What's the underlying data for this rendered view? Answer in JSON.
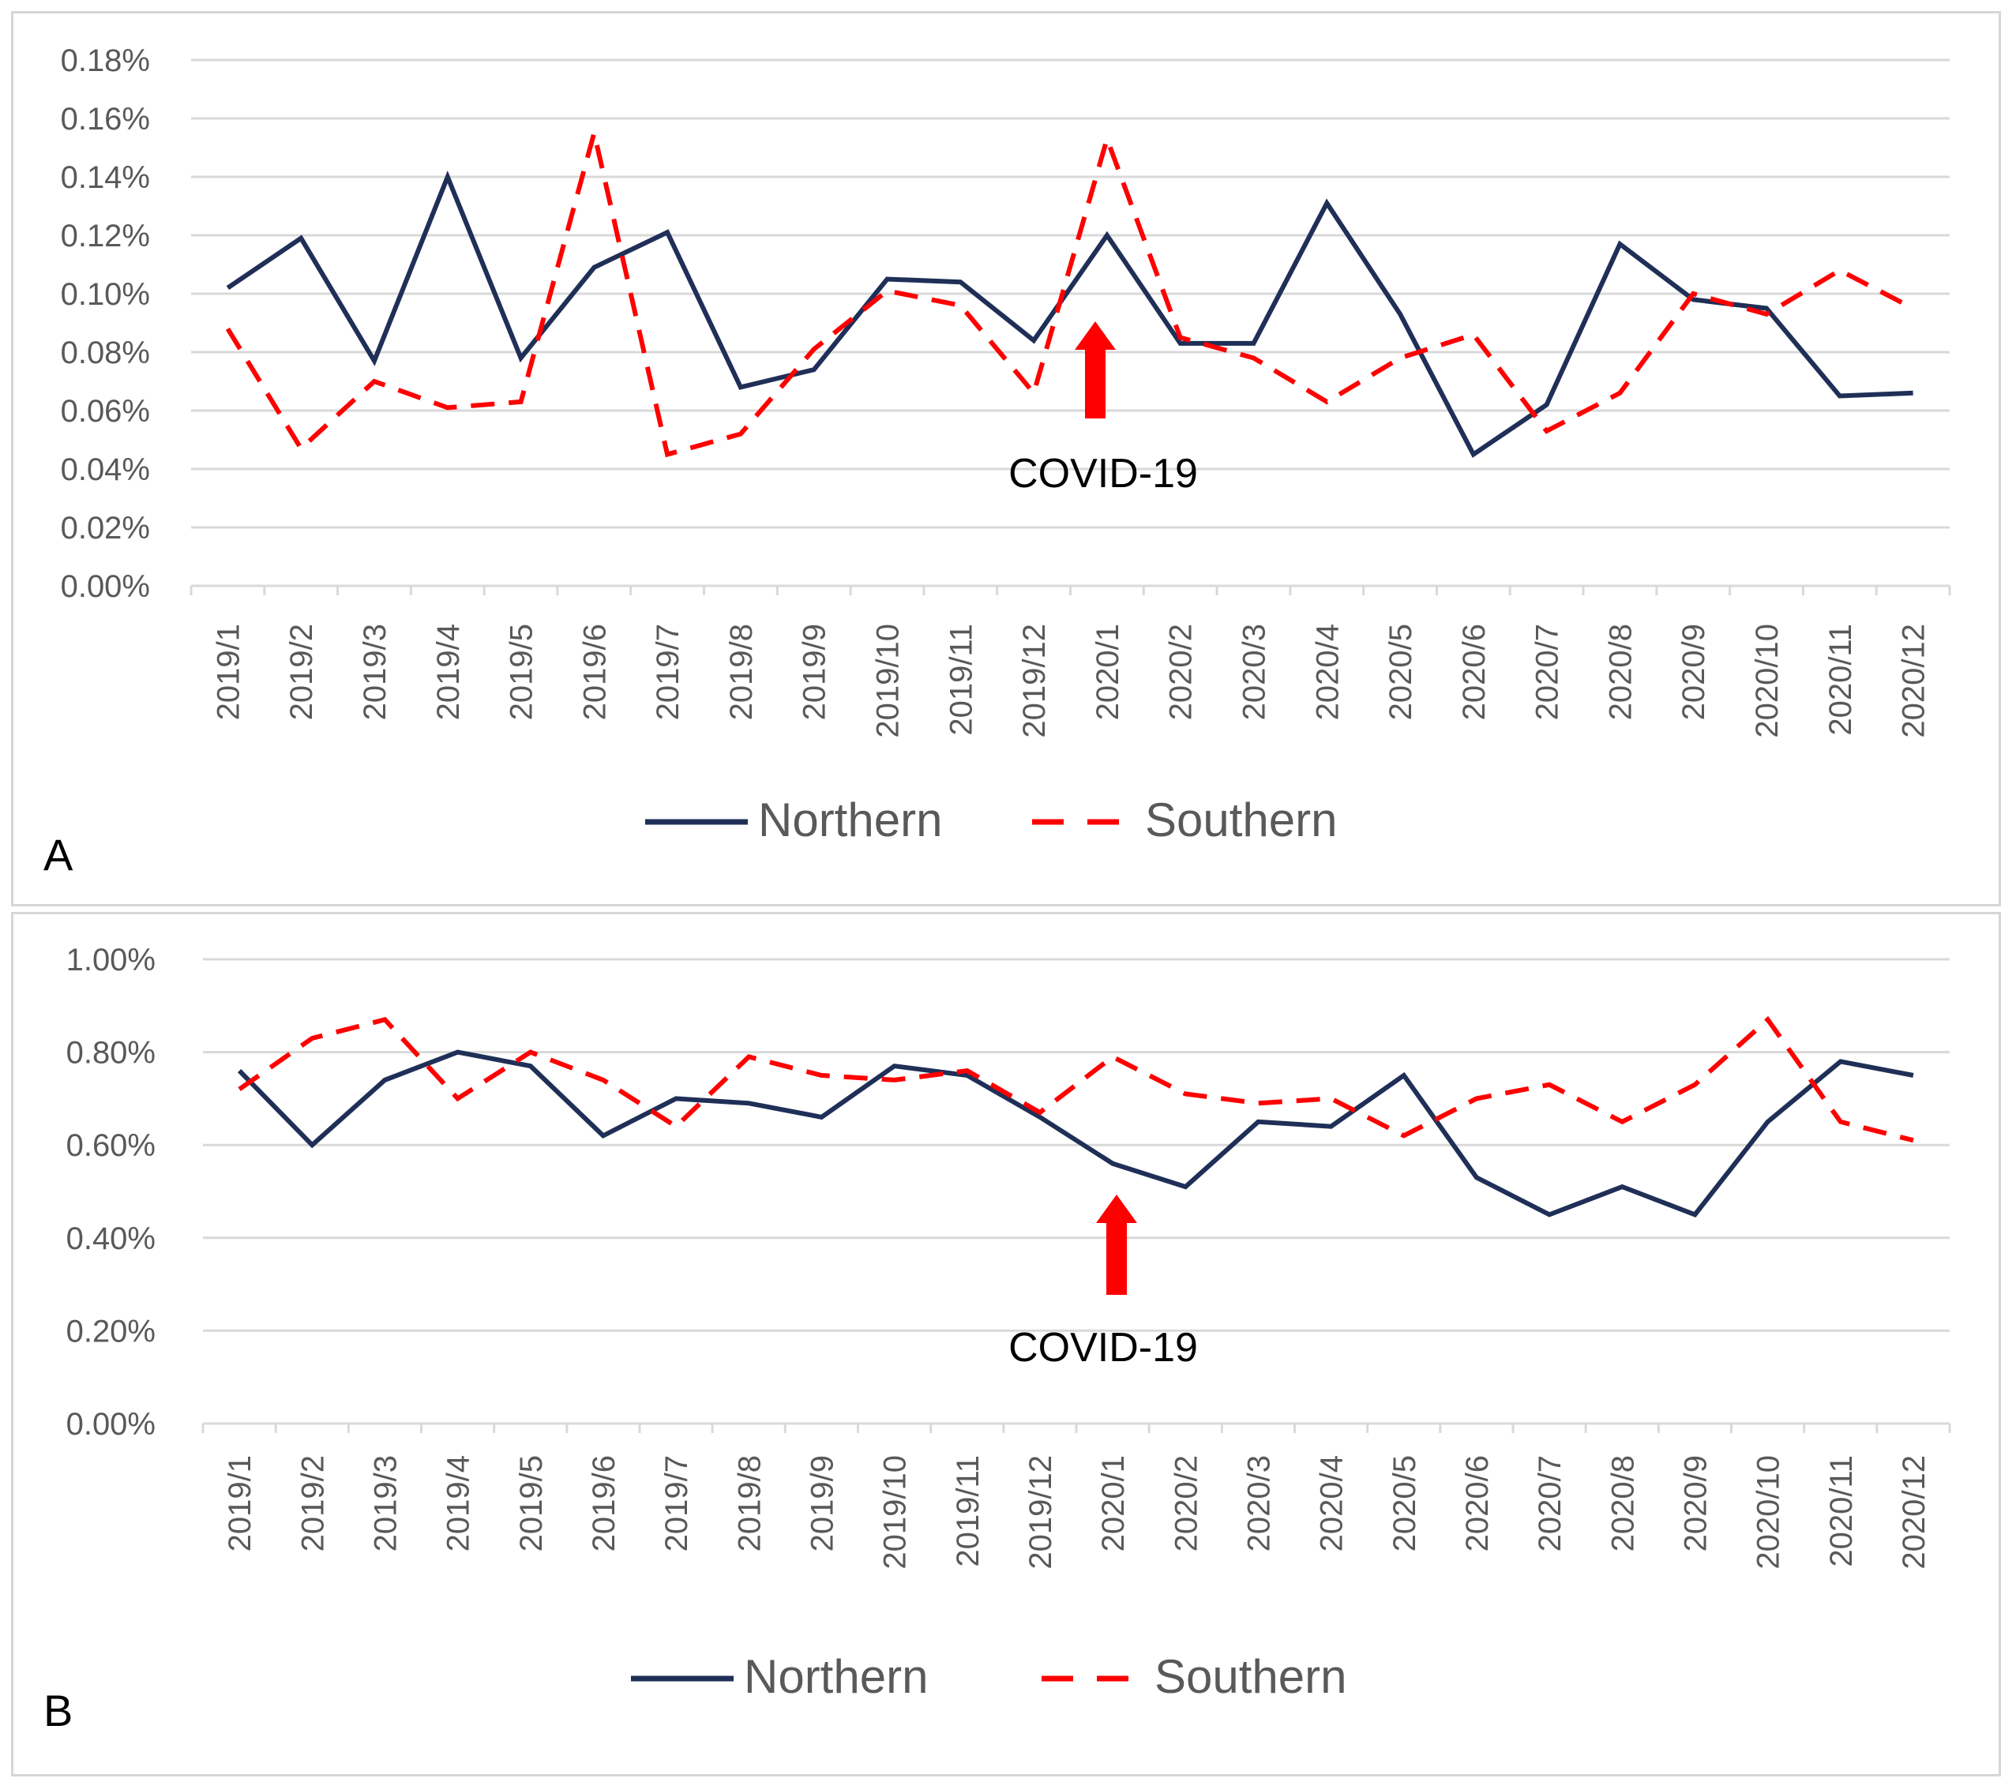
{
  "chart_data": [
    {
      "type": "line",
      "panel_label": "A",
      "categories": [
        "2019/1",
        "2019/2",
        "2019/3",
        "2019/4",
        "2019/5",
        "2019/6",
        "2019/7",
        "2019/8",
        "2019/9",
        "2019/10",
        "2019/11",
        "2019/12",
        "2020/1",
        "2020/2",
        "2020/3",
        "2020/4",
        "2020/5",
        "2020/6",
        "2020/7",
        "2020/8",
        "2020/9",
        "2020/10",
        "2020/11",
        "2020/12"
      ],
      "y_ticks": [
        "0.00%",
        "0.02%",
        "0.04%",
        "0.06%",
        "0.08%",
        "0.10%",
        "0.12%",
        "0.14%",
        "0.16%",
        "0.18%"
      ],
      "ylim": [
        0,
        0.18
      ],
      "grid": true,
      "legend_position": "bottom-center",
      "series": [
        {
          "name": "Northern",
          "style": "solid",
          "color": "#1f2f57",
          "values": [
            0.102,
            0.119,
            0.077,
            0.14,
            0.078,
            0.109,
            0.121,
            0.068,
            0.074,
            0.105,
            0.104,
            0.084,
            0.12,
            0.083,
            0.083,
            0.131,
            0.093,
            0.045,
            0.062,
            0.117,
            0.098,
            0.095,
            0.065,
            0.066
          ]
        },
        {
          "name": "Southern",
          "style": "dashed",
          "color": "#ff0000",
          "values": [
            0.088,
            0.047,
            0.07,
            0.061,
            0.063,
            0.155,
            0.045,
            0.052,
            0.081,
            0.101,
            0.096,
            0.066,
            0.153,
            0.085,
            0.078,
            0.063,
            0.078,
            0.086,
            0.053,
            0.066,
            0.1,
            0.093,
            0.108,
            0.095
          ]
        }
      ],
      "annotation": {
        "text": "COVID-19",
        "category": "2020/1"
      }
    },
    {
      "type": "line",
      "panel_label": "B",
      "categories": [
        "2019/1",
        "2019/2",
        "2019/3",
        "2019/4",
        "2019/5",
        "2019/6",
        "2019/7",
        "2019/8",
        "2019/9",
        "2019/10",
        "2019/11",
        "2019/12",
        "2020/1",
        "2020/2",
        "2020/3",
        "2020/4",
        "2020/5",
        "2020/6",
        "2020/7",
        "2020/8",
        "2020/9",
        "2020/10",
        "2020/11",
        "2020/12"
      ],
      "y_ticks": [
        "0.00%",
        "0.20%",
        "0.40%",
        "0.60%",
        "0.80%",
        "1.00%"
      ],
      "ylim": [
        0,
        1.0
      ],
      "grid": true,
      "legend_position": "bottom-center",
      "series": [
        {
          "name": "Northern",
          "style": "solid",
          "color": "#1f2f57",
          "values": [
            0.76,
            0.6,
            0.74,
            0.8,
            0.77,
            0.62,
            0.7,
            0.69,
            0.66,
            0.77,
            0.75,
            0.66,
            0.56,
            0.51,
            0.65,
            0.64,
            0.75,
            0.53,
            0.45,
            0.51,
            0.45,
            0.65,
            0.78,
            0.75
          ]
        },
        {
          "name": "Southern",
          "style": "dashed",
          "color": "#ff0000",
          "values": [
            0.72,
            0.83,
            0.87,
            0.7,
            0.8,
            0.74,
            0.64,
            0.79,
            0.75,
            0.74,
            0.76,
            0.67,
            0.79,
            0.71,
            0.69,
            0.7,
            0.62,
            0.7,
            0.73,
            0.65,
            0.73,
            0.87,
            0.65,
            0.61
          ]
        }
      ],
      "annotation": {
        "text": "COVID-19",
        "category": "2020/1"
      }
    }
  ]
}
